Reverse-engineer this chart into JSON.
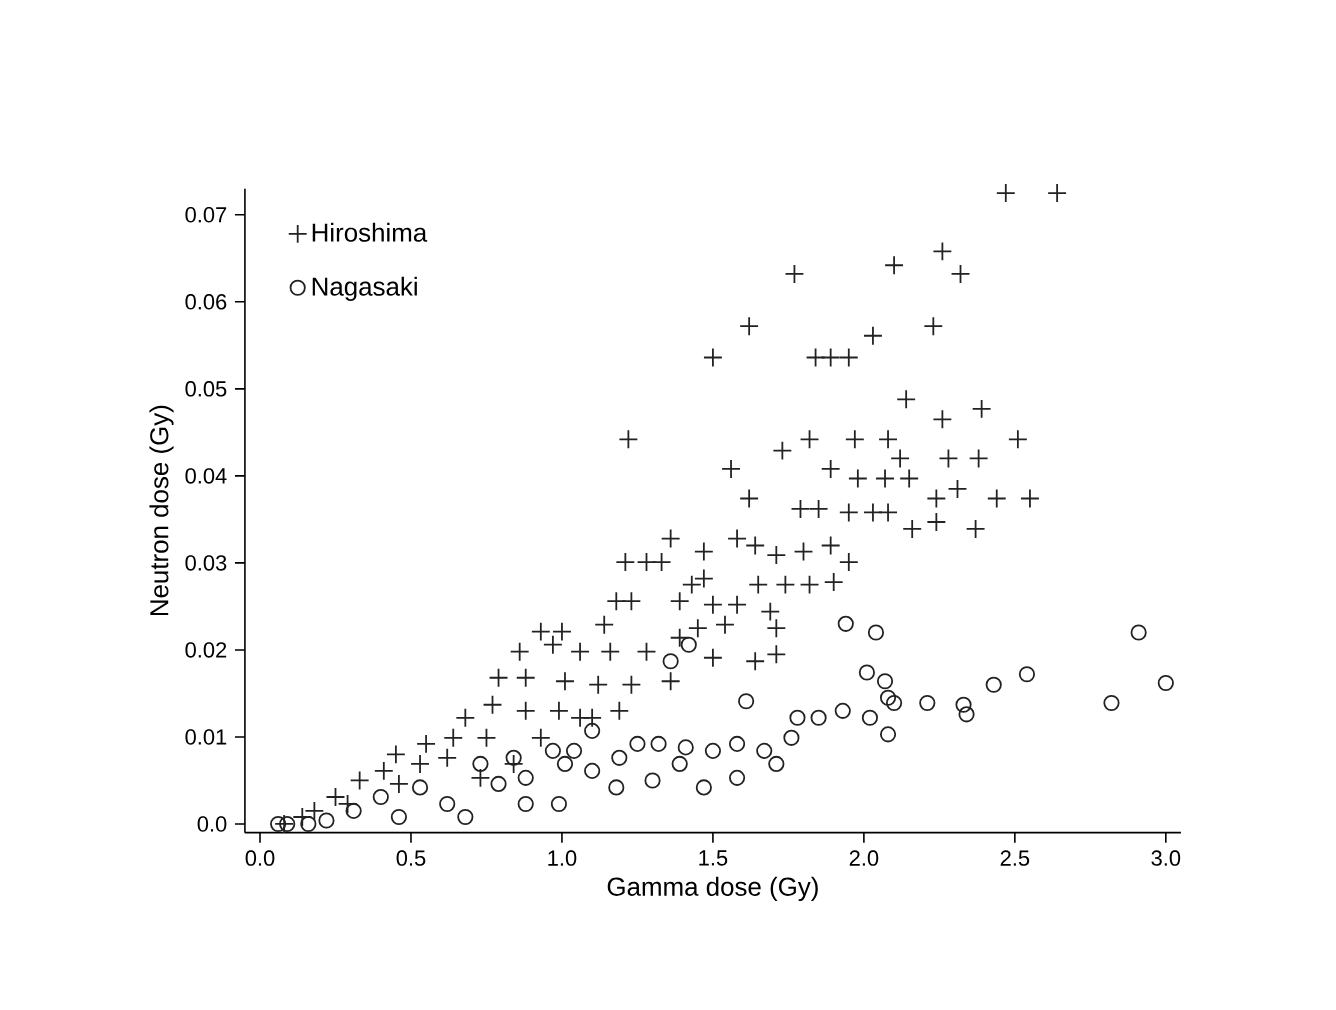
{
  "chart_data": {
    "type": "scatter",
    "xlabel": "Gamma dose (Gy)",
    "ylabel": "Neutron dose (Gy)",
    "xlim": [
      -0.05,
      3.05
    ],
    "ylim": [
      -0.001,
      0.073
    ],
    "xticks": [
      {
        "value": 0,
        "label": "0.0"
      },
      0.5,
      {
        "value": 1,
        "label": "1.0"
      },
      1.5,
      {
        "value": 2,
        "label": "2.0"
      },
      2.5,
      {
        "value": 3,
        "label": "3.0"
      }
    ],
    "yticks": [
      {
        "value": 0,
        "label": "0.0"
      },
      0.01,
      0.02,
      0.03,
      0.04,
      0.05,
      0.06,
      0.07
    ],
    "legend": "top left",
    "grid": false,
    "series": [
      {
        "name": "Hiroshima",
        "color": "#222222",
        "marker": "cross",
        "x": [
          2.47,
          2.64,
          1.77,
          2.1,
          2.26,
          2.32,
          1.62,
          1.5,
          1.84,
          1.89,
          1.95,
          2.03,
          2.23,
          1.22,
          2.14,
          2.26,
          2.39,
          2.51,
          1.56,
          1.73,
          1.82,
          1.97,
          2.08,
          2.12,
          2.28,
          2.38,
          1.89,
          1.98,
          2.07,
          2.15,
          2.31,
          1.62,
          1.79,
          1.85,
          1.95,
          2.03,
          2.08,
          2.24,
          2.44,
          2.55,
          2.16,
          2.24,
          2.37,
          1.36,
          1.21,
          1.28,
          1.33,
          1.47,
          1.58,
          1.64,
          1.71,
          1.8,
          1.89,
          1.95,
          1.9,
          1.82,
          1.74,
          1.65,
          1.47,
          1.43,
          1.18,
          1.23,
          1.14,
          1.39,
          1.5,
          1.58,
          1.69,
          1.71,
          1.54,
          1.45,
          1.39,
          0.93,
          1.0,
          0.86,
          0.97,
          1.06,
          1.16,
          1.28,
          1.64,
          1.71,
          1.5,
          0.79,
          0.88,
          1.01,
          1.12,
          1.23,
          1.36,
          0.68,
          0.77,
          0.88,
          0.99,
          1.1,
          1.19,
          0.45,
          0.55,
          0.64,
          0.75,
          0.41,
          0.33,
          0.25,
          0.53,
          0.62,
          0.18,
          0.14,
          0.29,
          0.46,
          0.73,
          0.84,
          0.08,
          0.93,
          1.06
        ],
        "values": [
          0.0725,
          0.0725,
          0.0632,
          0.0642,
          0.0658,
          0.0632,
          0.0572,
          0.0536,
          0.0536,
          0.0536,
          0.0536,
          0.0561,
          0.0572,
          0.0442,
          0.0488,
          0.0465,
          0.0477,
          0.0442,
          0.0408,
          0.0429,
          0.0442,
          0.0442,
          0.0442,
          0.042,
          0.042,
          0.042,
          0.0408,
          0.0397,
          0.0397,
          0.0397,
          0.0385,
          0.0374,
          0.0362,
          0.0362,
          0.0358,
          0.0358,
          0.0358,
          0.0374,
          0.0374,
          0.0374,
          0.0339,
          0.0347,
          0.0339,
          0.0328,
          0.0301,
          0.0301,
          0.0301,
          0.0313,
          0.0328,
          0.032,
          0.0309,
          0.0313,
          0.032,
          0.0301,
          0.0278,
          0.0275,
          0.0275,
          0.0275,
          0.0282,
          0.0275,
          0.0256,
          0.0256,
          0.0229,
          0.0256,
          0.0252,
          0.0252,
          0.0244,
          0.0225,
          0.0229,
          0.0225,
          0.0214,
          0.0221,
          0.0221,
          0.0198,
          0.0206,
          0.0198,
          0.0198,
          0.0198,
          0.0187,
          0.0195,
          0.0191,
          0.0168,
          0.0168,
          0.0164,
          0.016,
          0.016,
          0.0164,
          0.0122,
          0.0137,
          0.013,
          0.013,
          0.0122,
          0.013,
          0.008,
          0.0092,
          0.0099,
          0.0099,
          0.0061,
          0.005,
          0.0031,
          0.0069,
          0.0076,
          0.0015,
          0.0008,
          0.0023,
          0.0046,
          0.0053,
          0.0069,
          0.0,
          0.0099,
          0.0122
        ]
      },
      {
        "name": "Nagasaki",
        "color": "#222222",
        "marker": "circle",
        "x": [
          2.91,
          3.0,
          2.82,
          2.54,
          2.43,
          2.33,
          2.34,
          2.21,
          2.1,
          2.04,
          1.94,
          2.01,
          2.07,
          2.08,
          2.08,
          2.02,
          1.93,
          1.85,
          1.78,
          1.61,
          1.76,
          1.67,
          1.58,
          1.5,
          1.41,
          1.32,
          1.25,
          1.47,
          1.58,
          1.71,
          1.39,
          1.3,
          1.18,
          1.1,
          1.01,
          0.97,
          1.04,
          1.1,
          0.99,
          0.88,
          0.79,
          0.68,
          0.62,
          0.53,
          0.46,
          0.4,
          0.31,
          0.22,
          0.16,
          0.09,
          0.06,
          1.36,
          1.42,
          0.73,
          0.84,
          1.19,
          0.88
        ],
        "values": [
          0.022,
          0.0162,
          0.0139,
          0.0172,
          0.016,
          0.0137,
          0.0126,
          0.0139,
          0.0139,
          0.022,
          0.023,
          0.0174,
          0.0164,
          0.0145,
          0.0103,
          0.0122,
          0.013,
          0.0122,
          0.0122,
          0.0141,
          0.0099,
          0.0084,
          0.0092,
          0.0084,
          0.0088,
          0.0092,
          0.0092,
          0.0042,
          0.0053,
          0.0069,
          0.0069,
          0.005,
          0.0042,
          0.0061,
          0.0069,
          0.0084,
          0.0084,
          0.0107,
          0.0023,
          0.0053,
          0.0046,
          0.0008,
          0.0023,
          0.0042,
          0.0008,
          0.0031,
          0.0015,
          0.0004,
          0.0,
          0.0,
          0.0,
          0.0187,
          0.0206,
          0.0069,
          0.0076,
          0.0076,
          0.0023
        ]
      }
    ]
  }
}
